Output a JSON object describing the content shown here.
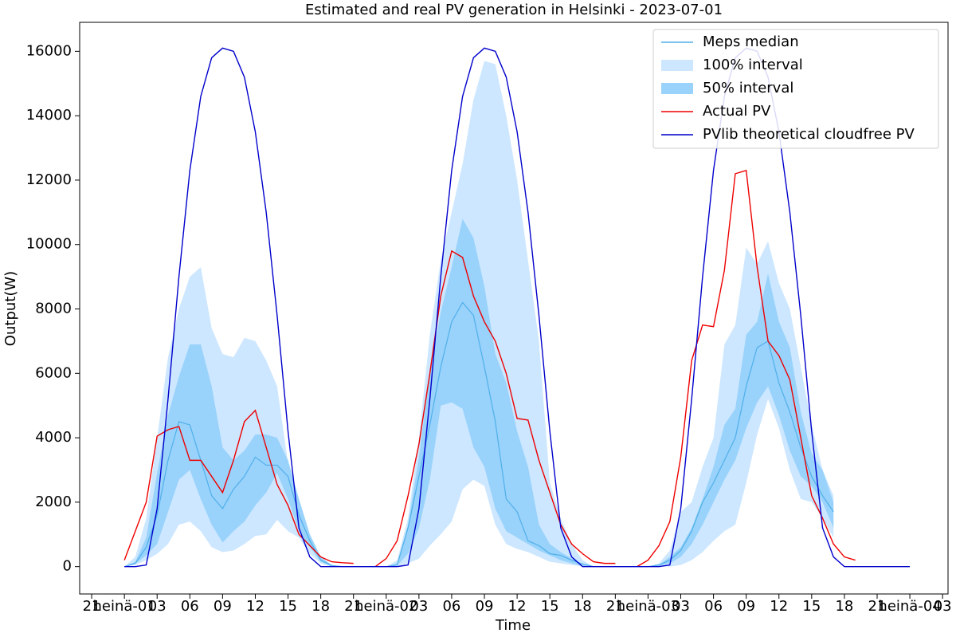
{
  "chart_data": {
    "type": "line",
    "title": "Estimated and real PV generation in Helsinki - 2023-07-01",
    "xlabel": "Time",
    "ylabel": "Output(W)",
    "xlim": [
      -4.1,
      75.5
    ],
    "ylim": [
      -850,
      16900
    ],
    "xticks": [
      {
        "value": -3,
        "label": "21"
      },
      {
        "value": 0,
        "label": "heinä-01"
      },
      {
        "value": 3,
        "label": "03"
      },
      {
        "value": 6,
        "label": "06"
      },
      {
        "value": 9,
        "label": "09"
      },
      12,
      15,
      18,
      21,
      {
        "value": 24,
        "label": "heinä-02"
      },
      {
        "value": 27,
        "label": "03"
      },
      {
        "value": 30,
        "label": "06"
      },
      {
        "value": 33,
        "label": "09"
      },
      {
        "value": 36,
        "label": "12"
      },
      {
        "value": 39,
        "label": "15"
      },
      {
        "value": 42,
        "label": "18"
      },
      {
        "value": 45,
        "label": "21"
      },
      {
        "value": 48,
        "label": "heinä-03"
      },
      {
        "value": 51,
        "label": "03"
      },
      {
        "value": 54,
        "label": "06"
      },
      {
        "value": 57,
        "label": "09"
      },
      {
        "value": 60,
        "label": "12"
      },
      {
        "value": 63,
        "label": "15"
      },
      {
        "value": 66,
        "label": "18"
      },
      {
        "value": 69,
        "label": "21"
      },
      {
        "value": 72,
        "label": "heinä-04"
      },
      {
        "value": 75,
        "label": "03"
      }
    ],
    "yticks": [
      0,
      2000,
      4000,
      6000,
      8000,
      10000,
      12000,
      14000,
      16000
    ],
    "legend": "upper right",
    "x": [
      0,
      1,
      2,
      3,
      4,
      5,
      6,
      7,
      8,
      9,
      10,
      11,
      12,
      13,
      14,
      15,
      16,
      17,
      18,
      19,
      20,
      21,
      22,
      23,
      24,
      25,
      26,
      27,
      28,
      29,
      30,
      31,
      32,
      33,
      34,
      35,
      36,
      37,
      38,
      39,
      40,
      41,
      42,
      43,
      44,
      45,
      46,
      47,
      48,
      49,
      50,
      51,
      52,
      53,
      54,
      55,
      56,
      57,
      58,
      59,
      60,
      61,
      62,
      63,
      64,
      65,
      66,
      67,
      68,
      69,
      70,
      71,
      72
    ],
    "series": [
      {
        "name": "Meps median",
        "kind": "line",
        "color": "#4fb0ea",
        "values": [
          0,
          100,
          600,
          1600,
          3300,
          4500,
          4400,
          3300,
          2200,
          1800,
          2400,
          2800,
          3400,
          3150,
          3150,
          2800,
          1600,
          800,
          200,
          30,
          0,
          0,
          0,
          0,
          0,
          50,
          1200,
          2800,
          4400,
          6200,
          7600,
          8200,
          7800,
          6200,
          4500,
          2100,
          1700,
          800,
          650,
          400,
          350,
          200,
          80,
          0,
          0,
          0,
          0,
          0,
          0,
          50,
          200,
          500,
          1100,
          2000,
          2600,
          3300,
          4000,
          5600,
          6800,
          7000,
          5700,
          4800,
          3700,
          2800,
          2200,
          1700,
          null,
          null,
          null,
          null,
          null,
          null,
          null
        ]
      },
      {
        "name": "100% interval",
        "kind": "band",
        "color": "#cce7ff",
        "upper": [
          0,
          300,
          1500,
          4000,
          6500,
          8000,
          9000,
          9300,
          7400,
          6600,
          6500,
          7100,
          7000,
          6400,
          5600,
          3200,
          1800,
          900,
          300,
          50,
          0,
          0,
          0,
          0,
          0,
          200,
          1500,
          4000,
          7200,
          9500,
          11000,
          12500,
          14500,
          15700,
          15600,
          14000,
          12000,
          9500,
          7000,
          2600,
          1500,
          700,
          200,
          0,
          0,
          0,
          0,
          0,
          0,
          100,
          500,
          1700,
          2000,
          3100,
          4000,
          6900,
          7500,
          9900,
          9400,
          10100,
          8800,
          8000,
          6200,
          4400,
          3000,
          2200,
          null,
          null,
          null,
          null,
          null,
          null,
          null
        ],
        "lower": [
          0,
          50,
          200,
          400,
          700,
          1300,
          1400,
          1100,
          600,
          450,
          500,
          700,
          950,
          1000,
          1450,
          1100,
          900,
          400,
          100,
          0,
          0,
          0,
          0,
          0,
          0,
          0,
          100,
          250,
          650,
          1000,
          1400,
          2400,
          2700,
          2500,
          1300,
          700,
          550,
          450,
          300,
          150,
          100,
          50,
          0,
          0,
          0,
          0,
          0,
          0,
          0,
          0,
          0,
          50,
          200,
          450,
          800,
          1100,
          1300,
          2600,
          4100,
          5200,
          4300,
          3000,
          2100,
          2000,
          1500,
          900,
          null,
          null,
          null,
          null,
          null,
          null,
          null
        ]
      },
      {
        "name": "50% interval",
        "kind": "band",
        "color": "#99d2fb",
        "upper": [
          0,
          150,
          900,
          2900,
          4700,
          5900,
          6900,
          6900,
          5600,
          3700,
          3300,
          3600,
          4100,
          4100,
          4000,
          3300,
          2100,
          1000,
          300,
          50,
          0,
          0,
          0,
          0,
          0,
          100,
          1300,
          3400,
          6000,
          7900,
          9300,
          10800,
          10200,
          8700,
          6600,
          5700,
          4200,
          3100,
          1300,
          700,
          450,
          250,
          80,
          0,
          0,
          0,
          0,
          0,
          0,
          50,
          300,
          600,
          1200,
          2100,
          3100,
          4400,
          4900,
          7200,
          7600,
          9100,
          7600,
          6800,
          4800,
          3500,
          3000,
          2000,
          null,
          null,
          null,
          null,
          null,
          null,
          null
        ],
        "lower": [
          0,
          80,
          350,
          700,
          1700,
          2700,
          3000,
          2100,
          1300,
          750,
          1100,
          1400,
          1900,
          2300,
          2900,
          2100,
          1100,
          600,
          150,
          0,
          0,
          0,
          0,
          0,
          0,
          30,
          400,
          1200,
          2700,
          5000,
          5100,
          4900,
          3700,
          3100,
          1800,
          1100,
          900,
          700,
          500,
          350,
          200,
          100,
          30,
          0,
          0,
          0,
          0,
          0,
          0,
          20,
          100,
          300,
          700,
          1300,
          2000,
          2700,
          3300,
          4300,
          5100,
          5600,
          4700,
          3600,
          2800,
          2500,
          2000,
          1200,
          null,
          null,
          null,
          null,
          null,
          null,
          null
        ]
      },
      {
        "name": "Actual PV",
        "kind": "line",
        "color": "#ee0000",
        "values": [
          200,
          1100,
          2000,
          4050,
          4250,
          4350,
          3300,
          3300,
          2800,
          2300,
          3300,
          4500,
          4850,
          3700,
          2550,
          1900,
          1000,
          650,
          300,
          150,
          120,
          100,
          null,
          0,
          250,
          800,
          2200,
          3800,
          6000,
          8400,
          9800,
          9600,
          8400,
          7600,
          7000,
          6000,
          4600,
          4550,
          3300,
          2300,
          1300,
          700,
          400,
          150,
          100,
          100,
          null,
          0,
          200,
          650,
          1400,
          3400,
          6400,
          7500,
          7450,
          9200,
          12200,
          12300,
          9300,
          7000,
          6550,
          5800,
          4000,
          2200,
          1500,
          700,
          300,
          200,
          null,
          null,
          null,
          null,
          null
        ]
      },
      {
        "name": "PVlib theoretical cloudfree PV",
        "kind": "line",
        "color": "#0000cc",
        "values": [
          0,
          0,
          50,
          1800,
          5200,
          9000,
          12300,
          14600,
          15800,
          16100,
          16000,
          15200,
          13500,
          11000,
          7800,
          4200,
          1200,
          300,
          0,
          0,
          0,
          0,
          0,
          0,
          0,
          0,
          50,
          1800,
          5200,
          9000,
          12300,
          14600,
          15800,
          16100,
          16000,
          15200,
          13500,
          11000,
          7800,
          4200,
          1200,
          300,
          0,
          0,
          0,
          0,
          0,
          0,
          0,
          0,
          50,
          1800,
          5200,
          9000,
          12300,
          14600,
          15800,
          16100,
          16000,
          15200,
          13500,
          11000,
          7800,
          4200,
          1200,
          300,
          0,
          0,
          0,
          0,
          0,
          0,
          0
        ]
      }
    ]
  }
}
